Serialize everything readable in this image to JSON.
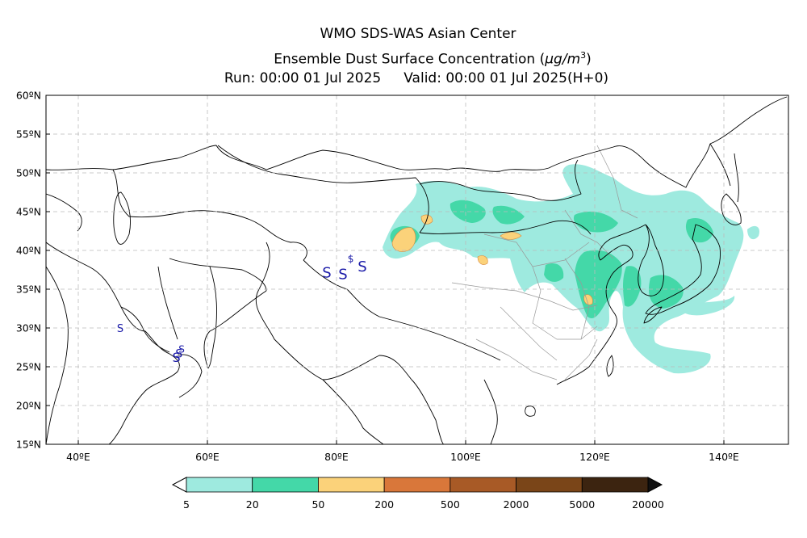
{
  "header": {
    "title": "WMO SDS-WAS Asian Center",
    "subtitle_prefix": "Ensemble Dust Surface Concentration (",
    "subtitle_unit": "μg/m",
    "subtitle_power": "3",
    "subtitle_suffix": ")",
    "run": "Run: 00:00 01 Jul 2025",
    "valid": "Valid: 00:00 01 Jul 2025(H+0)"
  },
  "map": {
    "lon_range": [
      35,
      150
    ],
    "lat_range": [
      15,
      60
    ],
    "grid": true,
    "lat_ticks": [
      "15ºN",
      "20ºN",
      "25ºN",
      "30ºN",
      "35ºN",
      "40ºN",
      "45ºN",
      "50ºN",
      "55ºN",
      "60ºN"
    ],
    "lon_ticks": [
      "40ºE",
      "60ºE",
      "80ºE",
      "100ºE",
      "120ºE",
      "140ºE"
    ],
    "sand_storm_symbol": "S",
    "sand_storm_symbol_marker": "$"
  },
  "legend": {
    "levels": [
      "5",
      "20",
      "50",
      "200",
      "500",
      "2000",
      "5000",
      "20000"
    ],
    "colors": [
      "#9eeadf",
      "#44d8a8",
      "#fbd27a",
      "#d9773a",
      "#a85a26",
      "#7a4518",
      "#3c2410"
    ],
    "under_color": "#ffffff",
    "over_color": "#111111"
  },
  "colors": {
    "coast": "#000000",
    "province": "#999999",
    "grid": "#bbbbbb"
  }
}
